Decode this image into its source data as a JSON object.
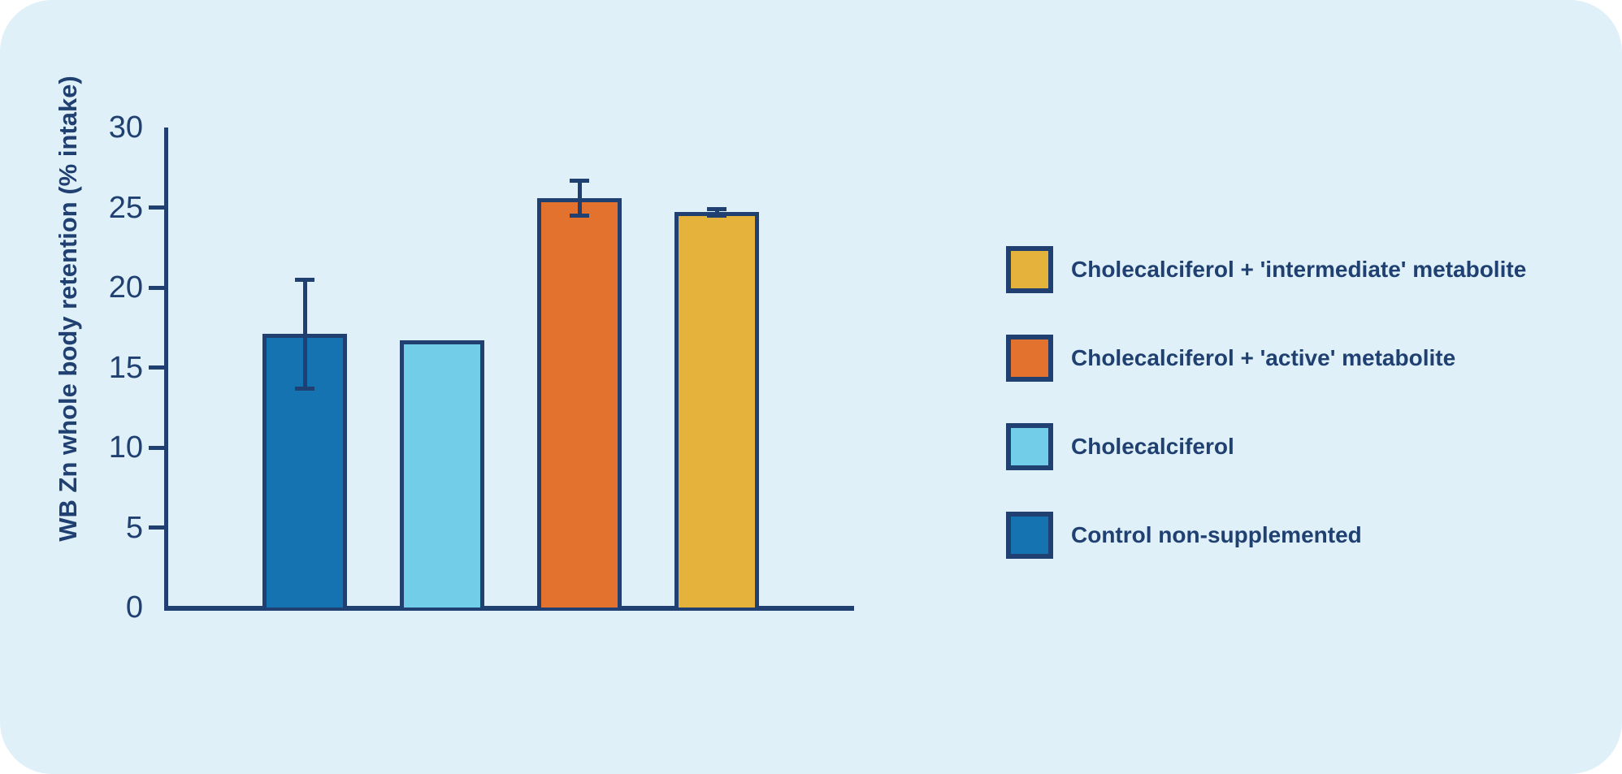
{
  "chart_data": {
    "type": "bar",
    "title": "",
    "xlabel": "",
    "ylabel": "WB Zn whole body retention (% intake)",
    "ylim": [
      0,
      30
    ],
    "yticks": [
      0,
      5,
      10,
      15,
      20,
      25,
      30
    ],
    "grid": false,
    "legend_position": "right",
    "categories": [
      "Control non-supplemented",
      "Cholecalciferol",
      "Cholecalciferol + 'active' metabolite",
      "Cholecalciferol + 'intermediate' metabolite"
    ],
    "series": [
      {
        "name": "WB Zn whole body retention (% intake)",
        "values": [
          17.1,
          16.7,
          25.6,
          24.7
        ],
        "errors": [
          3.4,
          0,
          1.1,
          0.2
        ]
      }
    ],
    "bar_colors": [
      "#1573b1",
      "#72cde9",
      "#e4722f",
      "#e5b33c"
    ],
    "legend": [
      {
        "label": "Cholecalciferol + 'intermediate' metabolite",
        "color": "#e5b33c"
      },
      {
        "label": "Cholecalciferol + 'active' metabolite",
        "color": "#e4722f"
      },
      {
        "label": "Cholecalciferol",
        "color": "#72cde9"
      },
      {
        "label": "Control non-supplemented",
        "color": "#1573b1"
      }
    ]
  },
  "colors": {
    "navy": "#1f4070",
    "panel_background": "#dff0f9",
    "page_background": "#ffffff"
  }
}
